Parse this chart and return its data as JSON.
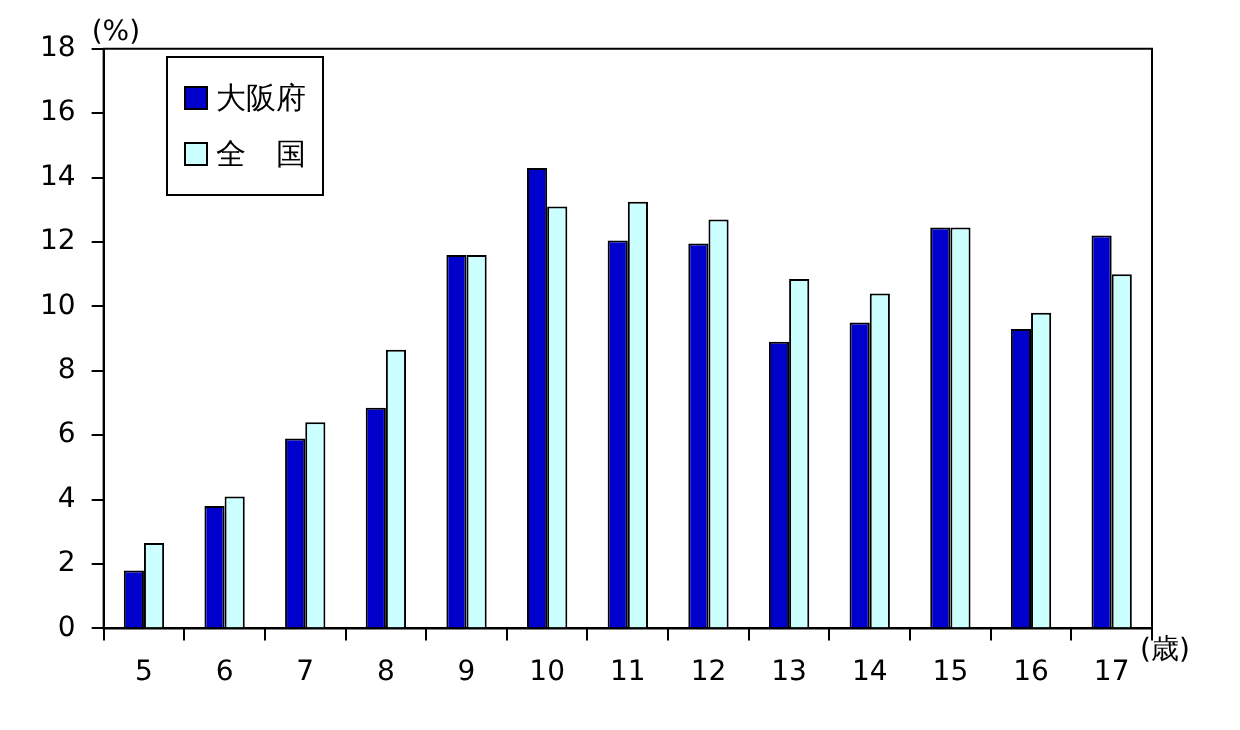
{
  "chart_data": {
    "type": "bar",
    "ylabel": "(%)",
    "xlabel": "(歳)",
    "categories": [
      "5",
      "6",
      "7",
      "8",
      "9",
      "10",
      "11",
      "12",
      "13",
      "14",
      "15",
      "16",
      "17"
    ],
    "series": [
      {
        "name": "大阪府",
        "color": "#0000cc",
        "values": [
          1.8,
          3.8,
          5.9,
          6.85,
          11.6,
          14.3,
          12.05,
          11.95,
          8.9,
          9.5,
          12.45,
          9.3,
          12.2
        ]
      },
      {
        "name": "全　国",
        "color": "#ccffff",
        "values": [
          2.65,
          4.1,
          6.4,
          8.65,
          11.6,
          13.1,
          13.25,
          12.7,
          10.85,
          10.4,
          12.45,
          9.8,
          11.0
        ]
      }
    ],
    "ylim": [
      0,
      18
    ],
    "yticks": [
      0,
      2,
      4,
      6,
      8,
      10,
      12,
      14,
      16,
      18
    ],
    "grid": false,
    "legend": "top left"
  }
}
